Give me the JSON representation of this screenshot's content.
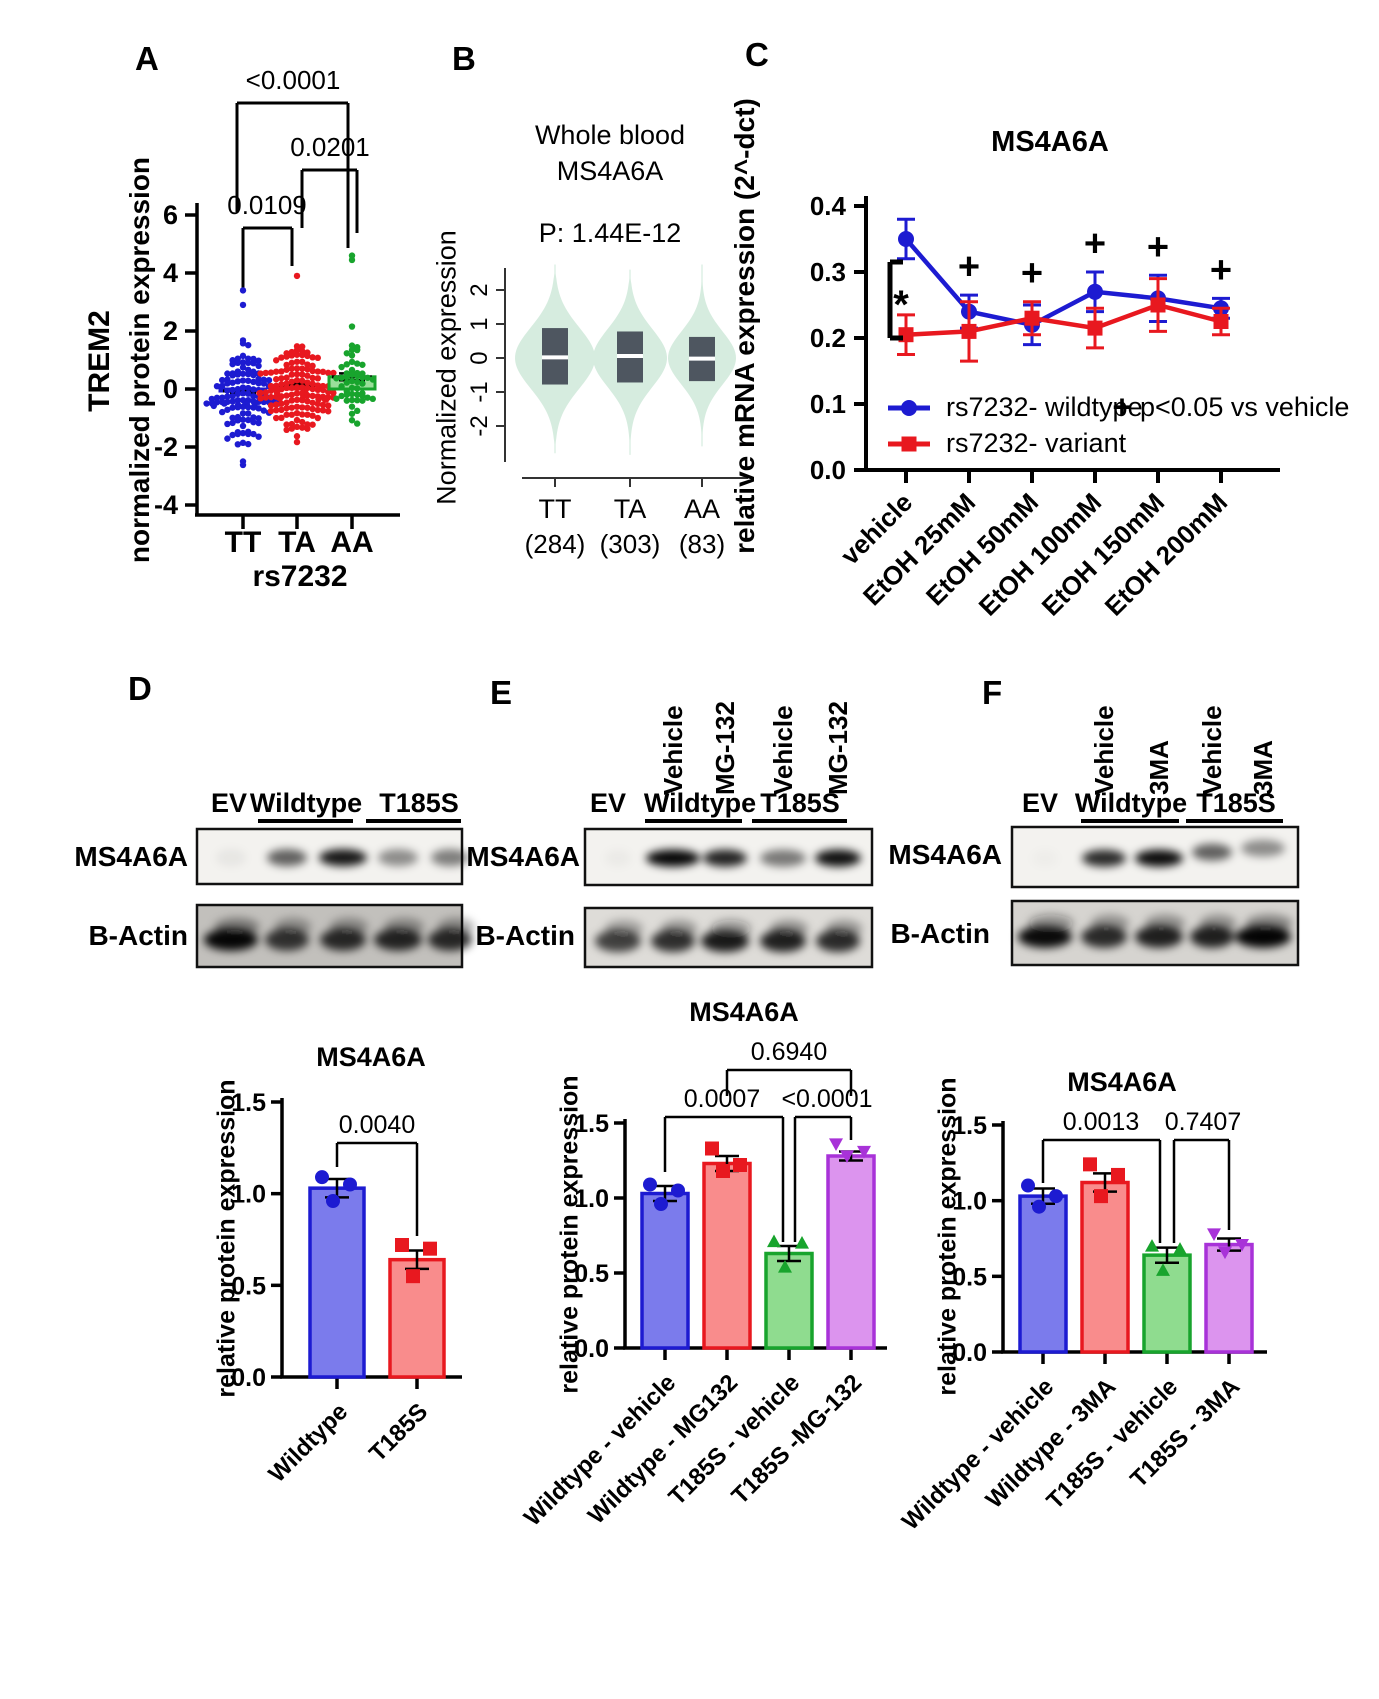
{
  "panels": {
    "A": {
      "label": "A",
      "xlabel": "rs7232",
      "ylabel_outer": "TREM2",
      "ylabel_inner": "normalized protein expression"
    },
    "B": {
      "label": "B",
      "title1": "Whole blood",
      "title2": "MS4A6A",
      "pvalue": "P: 1.44E-12",
      "ylabel": "Normalized expression"
    },
    "C": {
      "label": "C",
      "title": "MS4A6A",
      "ylabel": "relative mRNA expression (2^-dct)"
    },
    "D": {
      "label": "D",
      "groups": [
        "EV",
        "Wildtype",
        "T185S"
      ],
      "blot_rows": [
        "MS4A6A",
        "B-Actin"
      ],
      "bar_title": "MS4A6A",
      "bar_ylabel": "relative protein expression"
    },
    "E": {
      "label": "E",
      "groups": [
        "EV",
        "Wildtype",
        "T185S"
      ],
      "lanes": [
        "Vehicle",
        "MG-132",
        "Vehicle",
        "MG-132"
      ],
      "blot_rows": [
        "MS4A6A",
        "B-Actin"
      ],
      "bar_title": "MS4A6A",
      "bar_ylabel": "relative protein expression"
    },
    "F": {
      "label": "F",
      "groups": [
        "EV",
        "Wildtype",
        "T185S"
      ],
      "lanes": [
        "Vehicle",
        "3MA",
        "Vehicle",
        "3MA"
      ],
      "blot_rows": [
        "MS4A6A",
        "B-Actin"
      ],
      "bar_title": "MS4A6A",
      "bar_ylabel": "relative protein expression"
    }
  },
  "colors": {
    "blue": "#1d1bd1",
    "red": "#e8181f",
    "green": "#18a42d",
    "purple": "#a832d8",
    "blue_fill": "#7b7bec",
    "red_fill": "#f98c8c",
    "green_fill": "#8fdc8f",
    "purple_fill": "#dc94ee",
    "violin_fill": "#d6ecdf",
    "violin_box": "#4e5660"
  },
  "chart_data": [
    {
      "panel": "A",
      "type": "scatter",
      "title": "",
      "xlabel": "rs7232",
      "ylabel": "TREM2 normalized protein expression",
      "ylim": [
        -4,
        6
      ],
      "yticks": [
        -4,
        -2,
        0,
        2,
        4,
        6
      ],
      "categories": [
        "TT",
        "TA",
        "AA"
      ],
      "groups": [
        {
          "label": "TT",
          "color": "#1d1bd1",
          "n": 122,
          "mean": -0.08,
          "sd": 0.8,
          "clip": [
            -2.05,
            2.2
          ],
          "outliers": [
            3.4,
            2.9,
            -2.5,
            -2.62
          ],
          "bar_mean": -0.07,
          "sem": 0.08
        },
        {
          "label": "TA",
          "color": "#e8181f",
          "n": 142,
          "mean": 0.05,
          "sd": 0.75,
          "clip": [
            -1.9,
            2.45
          ],
          "outliers": [
            3.9
          ],
          "bar_mean": 0.12,
          "sem": 0.07
        },
        {
          "label": "AA",
          "color": "#18a42d",
          "n": 50,
          "mean": 0.3,
          "sd": 0.9,
          "clip": [
            -2.0,
            2.6
          ],
          "outliers": [
            4.6,
            4.45
          ],
          "bar_mean": 0.42,
          "sem": 0.12
        }
      ],
      "comparisons": [
        {
          "a": 0,
          "b": 1,
          "p": "0.0109"
        },
        {
          "a": 1,
          "b": 2,
          "p": "0.0201"
        },
        {
          "a": 0,
          "b": 2,
          "p": "<0.0001"
        }
      ]
    },
    {
      "panel": "B",
      "type": "violin",
      "title": "Whole blood MS4A6A",
      "pvalue": "P: 1.44E-12",
      "ylabel": "Normalized expression",
      "ylim": [
        -2.8,
        2.8
      ],
      "yticks": [
        -2,
        -1,
        0,
        1,
        2
      ],
      "categories": [
        "TT",
        "TA",
        "AA"
      ],
      "counts": [
        "(284)",
        "(303)",
        "(83)"
      ],
      "violins": [
        {
          "top": 2.75,
          "bottom": -2.8,
          "sigma": 0.9,
          "maxw": 40,
          "box_lo": -0.78,
          "box_hi": 0.88,
          "median": 0.02
        },
        {
          "top": 2.6,
          "bottom": -2.85,
          "sigma": 0.85,
          "maxw": 37,
          "box_lo": -0.72,
          "box_hi": 0.78,
          "median": 0.06
        },
        {
          "top": 2.75,
          "bottom": -2.6,
          "sigma": 0.78,
          "maxw": 34,
          "box_lo": -0.68,
          "box_hi": 0.62,
          "median": -0.02
        }
      ]
    },
    {
      "panel": "C",
      "type": "line",
      "title": "MS4A6A",
      "ylabel": "relative mRNA expression (2^-dct)",
      "ylim": [
        0,
        0.4
      ],
      "yticks": [
        "0.0",
        "0.1",
        "0.2",
        "0.3",
        "0.4"
      ],
      "categories": [
        "vehicle",
        "EtOH 25mM",
        "EtOH 50mM",
        "EtOH 100mM",
        "EtOH 150mM",
        "EtOH 200mM"
      ],
      "series": [
        {
          "name": "rs7232- wildtype",
          "color": "#1d1bd1",
          "marker": "circle",
          "values": [
            0.35,
            0.24,
            0.22,
            0.27,
            0.26,
            0.245
          ],
          "errors": [
            0.03,
            0.025,
            0.03,
            0.03,
            0.035,
            0.015
          ]
        },
        {
          "name": "rs7232- variant",
          "color": "#e8181f",
          "marker": "square",
          "values": [
            0.205,
            0.21,
            0.23,
            0.215,
            0.25,
            0.225
          ],
          "errors": [
            0.03,
            0.045,
            0.025,
            0.03,
            0.04,
            0.02
          ]
        }
      ],
      "plus_symbol": "+",
      "plus_at": [
        1,
        2,
        3,
        4,
        5
      ],
      "plus_note": "p<0.05 vs vehicle",
      "star": "*",
      "legend_position": "inside-bottom-left"
    },
    {
      "panel": "D",
      "type": "bar",
      "title": "MS4A6A",
      "ylabel": "relative protein expression",
      "ylim": [
        0,
        1.5
      ],
      "yticks": [
        "0.0",
        "0.5",
        "1.0",
        "1.5"
      ],
      "categories": [
        "Wildtype",
        "T185S"
      ],
      "values": [
        1.03,
        0.64
      ],
      "errors": [
        0.05,
        0.05
      ],
      "points": [
        [
          1.09,
          1.05,
          0.96
        ],
        [
          0.72,
          0.7,
          0.55
        ]
      ],
      "markers": [
        "circle",
        "square"
      ],
      "bar_stroke": [
        "#1d1bd1",
        "#e8181f"
      ],
      "bar_fill": [
        "#7b7bec",
        "#f98c8c"
      ],
      "comparisons": [
        {
          "a": 0,
          "b": 1,
          "p": "0.0040"
        }
      ]
    },
    {
      "panel": "E",
      "type": "bar",
      "title": "MS4A6A",
      "ylabel": "relative protein expression",
      "ylim": [
        0,
        1.5
      ],
      "yticks": [
        "0.0",
        "0.5",
        "1.0",
        "1.5"
      ],
      "categories": [
        "Wildtype - vehicle",
        "Wildtype - MG132",
        "T185S - vehicle",
        "T185S -MG-132"
      ],
      "values": [
        1.03,
        1.23,
        0.63,
        1.28
      ],
      "errors": [
        0.05,
        0.05,
        0.05,
        0.03
      ],
      "points": [
        [
          1.09,
          1.05,
          0.96
        ],
        [
          1.33,
          1.22,
          1.18
        ],
        [
          0.71,
          0.7,
          0.54
        ],
        [
          1.36,
          1.31,
          1.28
        ]
      ],
      "markers": [
        "circle",
        "square",
        "triangle-up",
        "triangle-down"
      ],
      "bar_stroke": [
        "#1d1bd1",
        "#e8181f",
        "#18a42d",
        "#a832d8"
      ],
      "bar_fill": [
        "#7b7bec",
        "#f98c8c",
        "#8fdc8f",
        "#dc94ee"
      ],
      "comparisons": [
        {
          "a": 0,
          "b": 2,
          "p": "0.0007"
        },
        {
          "a": 2,
          "b": 3,
          "p": "<0.0001"
        },
        {
          "a": 1,
          "b": 3,
          "p": "0.6940"
        }
      ]
    },
    {
      "panel": "F",
      "type": "bar",
      "title": "MS4A6A",
      "ylabel": "relative protein expression",
      "ylim": [
        0,
        1.5
      ],
      "yticks": [
        "0.0",
        "0.5",
        "1.0",
        "1.5"
      ],
      "categories": [
        "Wildtype - vehicle",
        "Wildtype - 3MA",
        "T185S - vehicle",
        "T185S - 3MA"
      ],
      "values": [
        1.03,
        1.12,
        0.64,
        0.71
      ],
      "errors": [
        0.05,
        0.06,
        0.05,
        0.04
      ],
      "points": [
        [
          1.1,
          1.03,
          0.96
        ],
        [
          1.24,
          1.17,
          1.03
        ],
        [
          0.7,
          0.68,
          0.54
        ],
        [
          0.78,
          0.71,
          0.66
        ]
      ],
      "markers": [
        "circle",
        "square",
        "triangle-up",
        "triangle-down"
      ],
      "bar_stroke": [
        "#1d1bd1",
        "#e8181f",
        "#18a42d",
        "#a832d8"
      ],
      "bar_fill": [
        "#7b7bec",
        "#f98c8c",
        "#8fdc8f",
        "#dc94ee"
      ],
      "comparisons": [
        {
          "a": 0,
          "b": 2,
          "p": "0.0013"
        },
        {
          "a": 2,
          "b": 3,
          "p": "0.7407"
        }
      ]
    }
  ],
  "blots": {
    "D": {
      "ms_bands": [
        0.05,
        0.6,
        0.9,
        0.42,
        0.48
      ],
      "ms_widths": [
        30,
        40,
        48,
        40,
        38
      ],
      "actin_bands": [
        0.97,
        0.75,
        0.8,
        0.82,
        0.8
      ],
      "actin_widths": [
        54,
        44,
        46,
        48,
        44
      ]
    },
    "E": {
      "ms_bands": [
        0.03,
        0.97,
        0.85,
        0.5,
        0.93
      ],
      "ms_widths": [
        26,
        54,
        44,
        46,
        46
      ],
      "actin_bands": [
        0.7,
        0.78,
        0.88,
        0.85,
        0.8
      ],
      "actin_widths": [
        46,
        44,
        48,
        46,
        44
      ]
    },
    "F": {
      "ms_bands": [
        0.02,
        0.82,
        0.95,
        0.6,
        0.42
      ],
      "ms_widths": [
        26,
        44,
        48,
        40,
        44
      ],
      "actin_bands": [
        0.95,
        0.8,
        0.85,
        0.85,
        0.98
      ],
      "actin_widths": [
        54,
        46,
        48,
        44,
        56
      ]
    }
  }
}
